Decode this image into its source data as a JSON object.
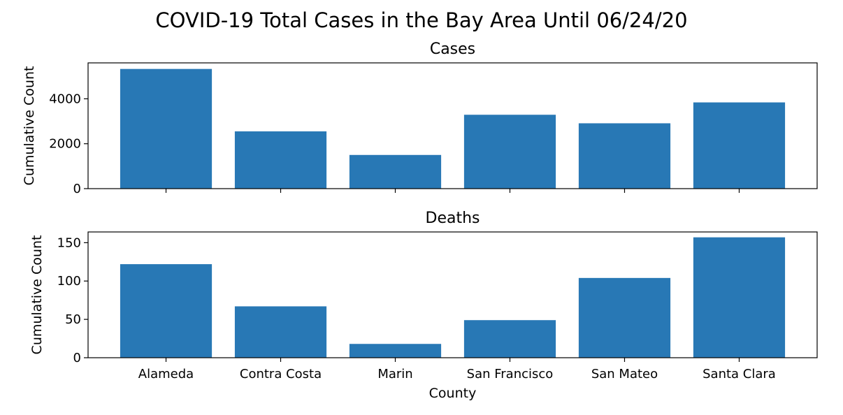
{
  "figure": {
    "title": "COVID-19 Total Cases in the Bay Area Until 06/24/20",
    "bar_color": "#2878b5"
  },
  "chart_data": [
    {
      "type": "bar",
      "title": "Cases",
      "xlabel": "",
      "ylabel": "Cumulative Count",
      "categories": [
        "Alameda",
        "Contra Costa",
        "Marin",
        "San Francisco",
        "San Mateo",
        "Santa Clara"
      ],
      "values": [
        5330,
        2550,
        1500,
        3290,
        2910,
        3840
      ],
      "ylim": [
        0,
        5600
      ],
      "yticks": [
        0,
        2000,
        4000
      ],
      "show_xtick_labels": false,
      "grid": false
    },
    {
      "type": "bar",
      "title": "Deaths",
      "xlabel": "County",
      "ylabel": "Cumulative Count",
      "categories": [
        "Alameda",
        "Contra Costa",
        "Marin",
        "San Francisco",
        "San Mateo",
        "Santa Clara"
      ],
      "values": [
        122,
        67,
        18,
        49,
        104,
        157
      ],
      "ylim": [
        0,
        164
      ],
      "yticks": [
        0,
        50,
        100,
        150
      ],
      "show_xtick_labels": true,
      "grid": false
    }
  ]
}
